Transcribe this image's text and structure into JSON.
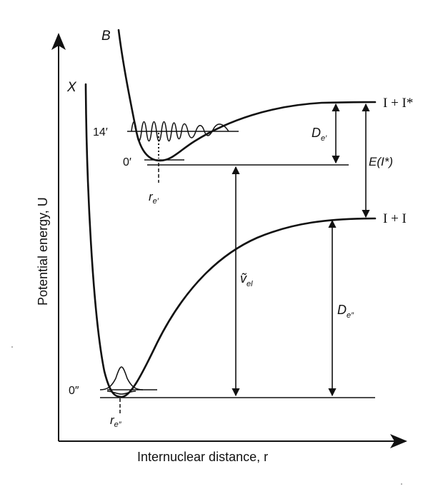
{
  "diagram": {
    "axes": {
      "y_label": "Potential energy, U",
      "x_label": "Internuclear distance, r"
    },
    "states": {
      "upper": "B",
      "lower": "X"
    },
    "levels": {
      "upper_high": "14′",
      "upper_zero": "0′",
      "lower_zero": "0″"
    },
    "equilibrium": {
      "upper_main": "r",
      "upper_sub": "e′",
      "lower_main": "r",
      "lower_sub": "e″"
    },
    "asymptotes": {
      "upper": "I + I*",
      "lower": "I + I"
    },
    "measures": {
      "upper_dissociation_main": "D",
      "upper_dissociation_sub": "e′",
      "excitation_energy": "E(I*)",
      "transition_main": "ṽ",
      "transition_sub": "el",
      "lower_dissociation_main": "D",
      "lower_dissociation_sub": "e″"
    }
  }
}
